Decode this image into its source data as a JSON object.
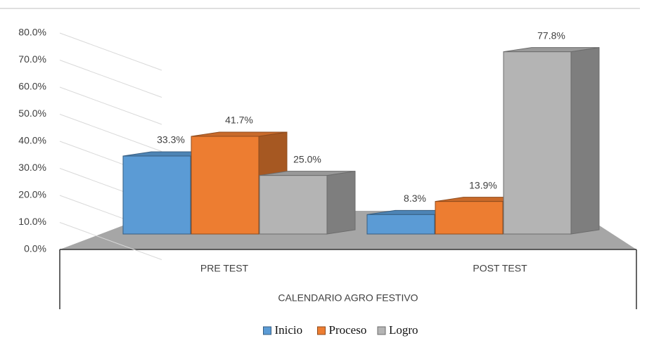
{
  "chart_data": {
    "type": "bar3d",
    "categories": [
      "PRE TEST",
      "POST TEST"
    ],
    "x_label": "CALENDARIO AGRO FESTIVO",
    "series": [
      {
        "name": "Inicio",
        "color": "#5b9bd5",
        "values": [
          33.3,
          8.3
        ],
        "value_labels": [
          "33.3%",
          "8.3%"
        ]
      },
      {
        "name": "Proceso",
        "color": "#ed7d31",
        "values": [
          41.7,
          13.9
        ],
        "value_labels": [
          "41.7%",
          "13.9%"
        ]
      },
      {
        "name": "Logro",
        "color": "#b4b4b4",
        "values": [
          25.0,
          77.8
        ],
        "value_labels": [
          "25.0%",
          "77.8%"
        ]
      }
    ],
    "ylim": [
      0,
      80
    ],
    "yticks": [
      {
        "value": 0,
        "label": "0.0%"
      },
      {
        "value": 10,
        "label": "10.0%"
      },
      {
        "value": 20,
        "label": "20.0%"
      },
      {
        "value": 30,
        "label": "30.0%"
      },
      {
        "value": 40,
        "label": "40.0%"
      },
      {
        "value": 50,
        "label": "50.0%"
      },
      {
        "value": 60,
        "label": "60.0%"
      },
      {
        "value": 70,
        "label": "70.0%"
      },
      {
        "value": 80,
        "label": "80.0%"
      }
    ],
    "grid": true,
    "legend": "bottom"
  }
}
